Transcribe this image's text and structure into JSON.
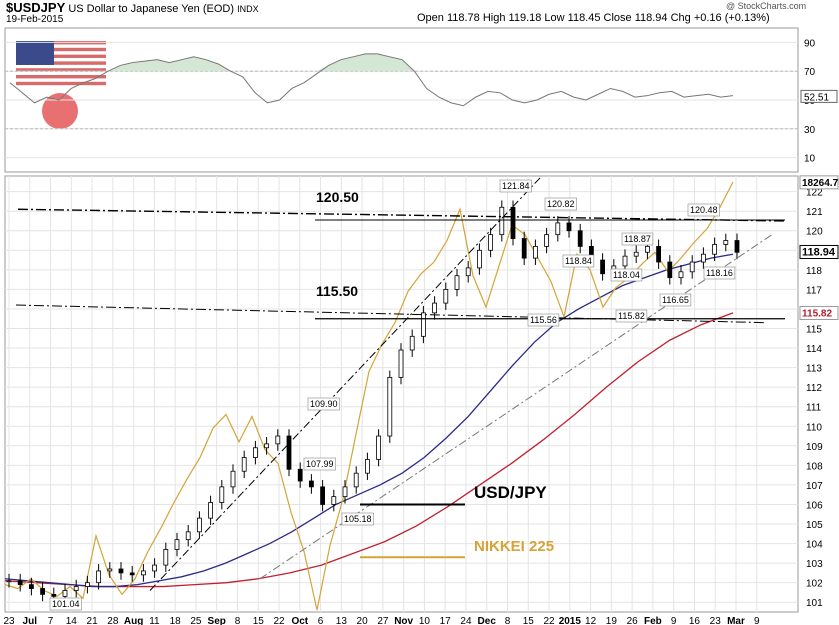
{
  "header": {
    "symbol": "$USDJPY",
    "description": "US Dollar to Japanese Yen (EOD)",
    "exchange": "INDX",
    "date": "19-Feb-2015",
    "ohlc": "Open 118.78  High 119.18  Low 118.45  Close 118.94  Chg +0.16 (+0.13%)",
    "watermark": "@ StockCharts.com"
  },
  "colors": {
    "price_bar": "#000000",
    "nikkei": "#d4a437",
    "ma_short": "#2a2a8a",
    "ma_long": "#c0202e",
    "rsi_line": "#777777",
    "rsi_fill": "#cfe3cf",
    "grid": "#e4e4e4"
  },
  "chart_data": [
    {
      "type": "line",
      "panel": "rsi",
      "ylim": [
        0,
        100
      ],
      "yticks": [
        10,
        30,
        50,
        70,
        90
      ],
      "last_value": 52.51,
      "series": [
        {
          "values": [
            62,
            55,
            48,
            52,
            50,
            58,
            62,
            65,
            70,
            74,
            76,
            77,
            78,
            76,
            78,
            80,
            78,
            75,
            70,
            66,
            55,
            48,
            50,
            58,
            62,
            68,
            74,
            78,
            80,
            82,
            82,
            80,
            78,
            70,
            58,
            52,
            48,
            46,
            52,
            56,
            55,
            50,
            48,
            50,
            54,
            56,
            52,
            50,
            54,
            58,
            56,
            52,
            53,
            55,
            56,
            52,
            53,
            54,
            52,
            53
          ]
        }
      ]
    },
    {
      "type": "line",
      "panel": "price",
      "ylim": [
        100.5,
        122.8
      ],
      "yticks": [
        101,
        102,
        103,
        104,
        105,
        106,
        107,
        108,
        109,
        110,
        111,
        112,
        113,
        114,
        115,
        116,
        117,
        118,
        119,
        120,
        121,
        122
      ],
      "x_tick_labels": [
        "23",
        "Jul",
        "7",
        "14",
        "21",
        "28",
        "Aug",
        "11",
        "18",
        "25",
        "Sep",
        "8",
        "15",
        "22",
        "Oct",
        "6",
        "13",
        "20",
        "27",
        "Nov",
        "10",
        "17",
        "24",
        "Dec",
        "8",
        "15",
        "22",
        "2015",
        "12",
        "19",
        "26",
        "Feb",
        "9",
        "16",
        "23",
        "Mar",
        "9"
      ],
      "right_labels": [
        "18264.7",
        "118.94",
        "115.82"
      ],
      "series": [
        {
          "name": "USD/JPY",
          "values": [
            102.1,
            101.9,
            101.7,
            101.4,
            101.3,
            101.6,
            101.8,
            102.0,
            102.6,
            102.7,
            102.5,
            102.4,
            102.6,
            102.9,
            103.7,
            104.2,
            104.6,
            105.3,
            106.1,
            106.9,
            107.7,
            108.4,
            108.9,
            109.1,
            109.5,
            107.8,
            107.2,
            106.9,
            106.0,
            106.4,
            106.9,
            107.6,
            108.3,
            109.5,
            112.5,
            113.9,
            114.6,
            115.8,
            116.3,
            117.0,
            117.7,
            118.1,
            119.0,
            119.8,
            121.2,
            119.6,
            118.6,
            119.2,
            119.8,
            120.4,
            120.0,
            119.2,
            118.5,
            117.8,
            118.2,
            118.7,
            118.9,
            119.2,
            118.4,
            117.6,
            117.9,
            118.4,
            118.8,
            119.3,
            119.5,
            118.9
          ]
        },
        {
          "name": "NIKKEI 225",
          "values": [
            101.9,
            101.7,
            102.2,
            101.6,
            101.3,
            101.8,
            101.2,
            104.4,
            102.4,
            101.4,
            102.2,
            103.6,
            104.8,
            106.1,
            107.3,
            108.4,
            109.9,
            110.6,
            109.2,
            110.5,
            108.8,
            108.1,
            105.6,
            103.6,
            100.6,
            103.9,
            106.3,
            109.6,
            112.8,
            114.2,
            115.3,
            116.9,
            117.8,
            118.4,
            119.5,
            121.1,
            117.7,
            116.1,
            118.2,
            120.3,
            119.8,
            118.6,
            117.4,
            115.6,
            118.8,
            118.0,
            116.1,
            117.1,
            117.6,
            118.3,
            118.9,
            117.9,
            118.6,
            119.4,
            120.1,
            121.2,
            122.5
          ]
        },
        {
          "values": [
            102.2,
            102.1,
            102.0,
            101.9,
            101.8,
            101.8,
            101.9,
            102.1,
            102.3,
            102.6,
            103.0,
            103.5,
            104.0,
            104.6,
            105.3,
            106.0,
            106.5,
            107.0,
            107.6,
            108.4,
            109.4,
            110.5,
            111.8,
            113.1,
            114.3,
            115.3,
            116.0,
            116.6,
            117.2,
            117.6,
            118.0,
            118.3,
            118.6,
            118.8
          ]
        },
        {
          "values": [
            102.1,
            102.0,
            101.9,
            101.8,
            101.8,
            101.8,
            101.9,
            102.0,
            102.2,
            102.5,
            102.9,
            103.5,
            104.1,
            104.9,
            105.9,
            107.0,
            108.1,
            109.3,
            110.6,
            112.0,
            113.3,
            114.4,
            115.2,
            115.8
          ]
        }
      ],
      "annotations": [
        "120.50",
        "115.50",
        "121.84",
        "120.82",
        "120.48",
        "118.87",
        "118.84",
        "118.04",
        "118.16",
        "116.65",
        "115.82",
        "115.56",
        "109.90",
        "107.99",
        "105.18",
        "101.04",
        "USD/JPY",
        "NIKKEI 225"
      ]
    }
  ]
}
